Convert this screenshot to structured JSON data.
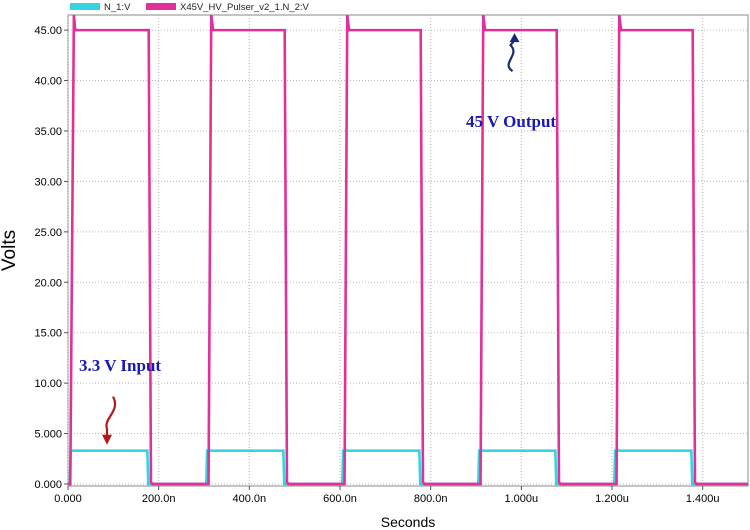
{
  "chart_data": {
    "type": "line",
    "xlabel": "Seconds",
    "ylabel": "Volts",
    "xlim": [
      0,
      1.5e-06
    ],
    "ylim": [
      -0.2,
      46.5
    ],
    "grid": true,
    "legend_position": "top-left",
    "x_ticks": [
      {
        "value": 0,
        "label": "0.000"
      },
      {
        "value": 2e-07,
        "label": "200.0n"
      },
      {
        "value": 4e-07,
        "label": "400.0n"
      },
      {
        "value": 6e-07,
        "label": "600.0n"
      },
      {
        "value": 8e-07,
        "label": "800.0n"
      },
      {
        "value": 1e-06,
        "label": "1.000u"
      },
      {
        "value": 1.2e-06,
        "label": "1.200u"
      },
      {
        "value": 1.4e-06,
        "label": "1.400u"
      }
    ],
    "y_ticks": [
      {
        "value": 0,
        "label": "0.000"
      },
      {
        "value": 5,
        "label": "5.000"
      },
      {
        "value": 10,
        "label": "10.00"
      },
      {
        "value": 15,
        "label": "15.00"
      },
      {
        "value": 20,
        "label": "20.00"
      },
      {
        "value": 25,
        "label": "25.00"
      },
      {
        "value": 30,
        "label": "30.00"
      },
      {
        "value": 35,
        "label": "35.00"
      },
      {
        "value": 40,
        "label": "40.00"
      },
      {
        "value": 45,
        "label": "45.00"
      }
    ],
    "series": [
      {
        "name": "N_1:V",
        "color": "#33d6e0",
        "x": [
          0,
          4e-09,
          6e-09,
          1.75e-07,
          1.77e-07,
          3.05e-07,
          3.07e-07,
          4.75e-07,
          4.77e-07,
          6.05e-07,
          6.07e-07,
          7.75e-07,
          7.77e-07,
          9.05e-07,
          9.07e-07,
          1.075e-06,
          1.077e-06,
          1.205e-06,
          1.207e-06,
          1.375e-06,
          1.377e-06,
          1.5e-06
        ],
        "y": [
          0,
          0,
          3.3,
          3.3,
          0,
          0,
          3.3,
          3.3,
          0,
          0,
          3.3,
          3.3,
          0,
          0,
          3.3,
          3.3,
          0,
          0,
          3.3,
          3.3,
          0,
          0
        ]
      },
      {
        "name": "X45V_HV_Pulser_v2_1.N_2:V",
        "color": "#e0309a",
        "x": [
          0,
          5e-09,
          1.3e-08,
          1.6e-08,
          2e-08,
          1.78e-07,
          1.83e-07,
          1.86e-07,
          3.1e-07,
          3.16e-07,
          3.2e-07,
          4.78e-07,
          4.83e-07,
          4.86e-07,
          6.1e-07,
          6.16e-07,
          6.2e-07,
          7.78e-07,
          7.83e-07,
          7.86e-07,
          9.1e-07,
          9.16e-07,
          9.2e-07,
          1.078e-06,
          1.083e-06,
          1.086e-06,
          1.21e-06,
          1.216e-06,
          1.22e-06,
          1.378e-06,
          1.383e-06,
          1.386e-06,
          1.5e-06
        ],
        "y": [
          0,
          0,
          46.5,
          45,
          45,
          45,
          0.2,
          0,
          0,
          46.5,
          45,
          45,
          0.2,
          0,
          0,
          46.5,
          45,
          45,
          0.2,
          0,
          0,
          46.5,
          45,
          45,
          0.2,
          0,
          0,
          46.5,
          45,
          45,
          0.2,
          0,
          0
        ]
      }
    ],
    "annotations": [
      {
        "text": "45 V Output",
        "color": "#1a1ab0",
        "arrow_color": "#1a2a7a",
        "points_to": {
          "x": 9.85e-07,
          "y": 45
        }
      },
      {
        "text": "3.3 V Input",
        "color": "#1a1ab0",
        "arrow_color": "#b01a1a",
        "points_to": {
          "x": 7e-08,
          "y": 3.3
        }
      }
    ]
  }
}
